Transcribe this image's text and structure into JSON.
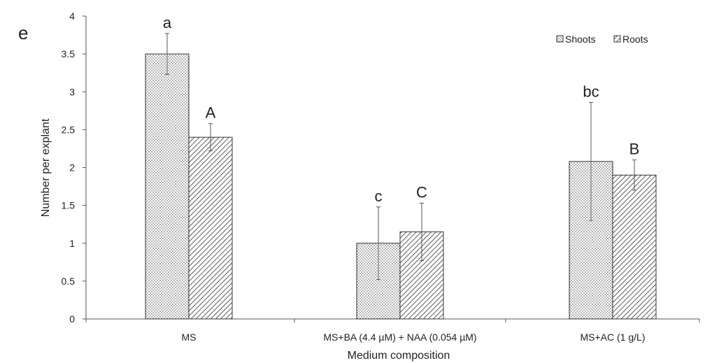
{
  "chart_data": {
    "type": "bar",
    "panel_label": "e",
    "title": "",
    "xlabel": "Medium composition",
    "ylabel": "Number per explant",
    "ylim": [
      0,
      4
    ],
    "yticks": [
      "0",
      "0.5",
      "1",
      "1.5",
      "2",
      "2.5",
      "3",
      "3.5",
      "4"
    ],
    "categories": [
      "MS",
      "MS+BA (4.4 µM) + NAA (0.054 µM)",
      "MS+AC (1 g/L)"
    ],
    "series": [
      {
        "name": "Shoots",
        "pattern": "dots",
        "values": [
          3.5,
          1.0,
          2.08
        ],
        "errors": [
          0.27,
          0.48,
          0.78
        ],
        "labels": [
          "a",
          "c",
          "bc"
        ]
      },
      {
        "name": "Roots",
        "pattern": "hatch",
        "values": [
          2.4,
          1.15,
          1.9
        ],
        "errors": [
          0.18,
          0.38,
          0.2
        ],
        "labels": [
          "A",
          "C",
          "B"
        ]
      }
    ],
    "legend_position": "top-right",
    "grid": false,
    "colors": {
      "bar_stroke": "#333333",
      "pattern": "#444444",
      "axis": "#555555"
    }
  }
}
